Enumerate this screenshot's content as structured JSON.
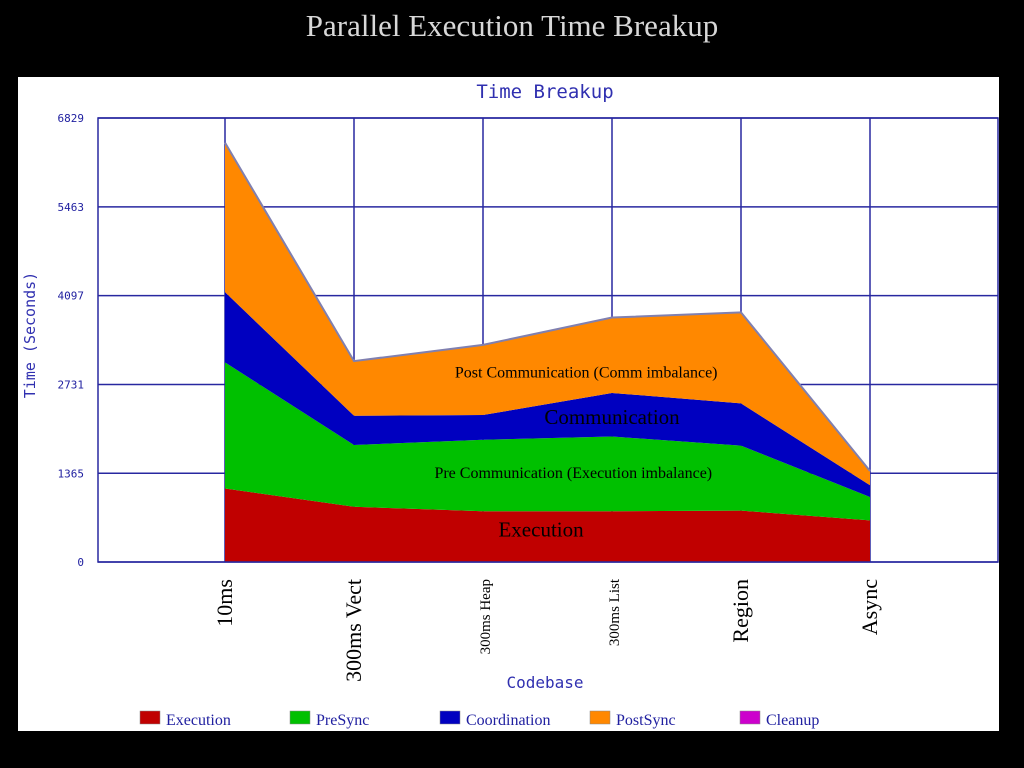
{
  "slide_title": "Parallel Execution Time Breakup",
  "chart_data": {
    "type": "area",
    "stacked": true,
    "title": "Time Breakup",
    "xlabel": "Codebase",
    "ylabel": "Time (Seconds)",
    "ylim": [
      0,
      6829
    ],
    "yticks": [
      "0",
      "1365",
      "2731",
      "4097",
      "5463",
      "6829"
    ],
    "categories": [
      "10ms",
      "300ms Vect",
      "300ms Heap",
      "300ms List",
      "Region",
      "Async"
    ],
    "grid": true,
    "legend_position": "bottom",
    "series": [
      {
        "name": "Execution",
        "color": "#c00000",
        "values": [
          1130,
          850,
          780,
          780,
          790,
          640
        ]
      },
      {
        "name": "PreSync",
        "color": "#00c000",
        "values": [
          1940,
          950,
          1100,
          1150,
          1000,
          360
        ]
      },
      {
        "name": "Coordination",
        "color": "#0000c0",
        "values": [
          1080,
          450,
          380,
          670,
          650,
          180
        ]
      },
      {
        "name": "PostSync",
        "color": "#ff8800",
        "values": [
          2300,
          840,
          1080,
          1160,
          1400,
          220
        ]
      },
      {
        "name": "Cleanup",
        "color": "#cc00cc",
        "values": [
          0,
          0,
          0,
          0,
          0,
          0
        ]
      }
    ],
    "annotations": [
      {
        "text": "Post Communication (Comm imbalance)",
        "x": 2.8,
        "y": 2840,
        "size": "small"
      },
      {
        "text": "Communication",
        "x": 3.0,
        "y": 2120,
        "size": "large"
      },
      {
        "text": "Pre Communication (Execution imbalance)",
        "x": 2.7,
        "y": 1290,
        "size": "small"
      },
      {
        "text": "Execution",
        "x": 2.45,
        "y": 390,
        "size": "large"
      }
    ]
  }
}
